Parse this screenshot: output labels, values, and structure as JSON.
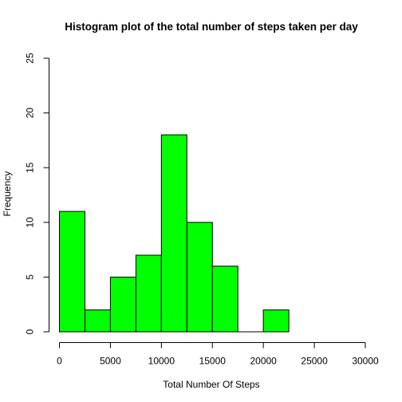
{
  "chart_data": {
    "type": "bar",
    "title": "Histogram plot of the total number of steps taken per day",
    "xlabel": "Total Number Of Steps",
    "ylabel": "Frequency",
    "bin_edges": [
      0,
      2500,
      5000,
      7500,
      10000,
      12500,
      15000,
      17500,
      20000,
      22500
    ],
    "values": [
      11,
      2,
      5,
      7,
      18,
      10,
      6,
      0,
      2
    ],
    "xlim": [
      0,
      30000
    ],
    "ylim": [
      0,
      25
    ],
    "x_ticks": [
      0,
      5000,
      10000,
      15000,
      20000,
      25000,
      30000
    ],
    "x_tick_labels": [
      "0",
      "5000",
      "10000",
      "15000",
      "20000",
      "25000",
      "30000"
    ],
    "y_ticks": [
      0,
      5,
      10,
      15,
      20,
      25
    ],
    "y_tick_labels": [
      "0",
      "5",
      "10",
      "15",
      "20",
      "25"
    ],
    "bar_color": "#00ff00",
    "bar_border_color": "#000000",
    "grid": false,
    "legend": "none"
  }
}
